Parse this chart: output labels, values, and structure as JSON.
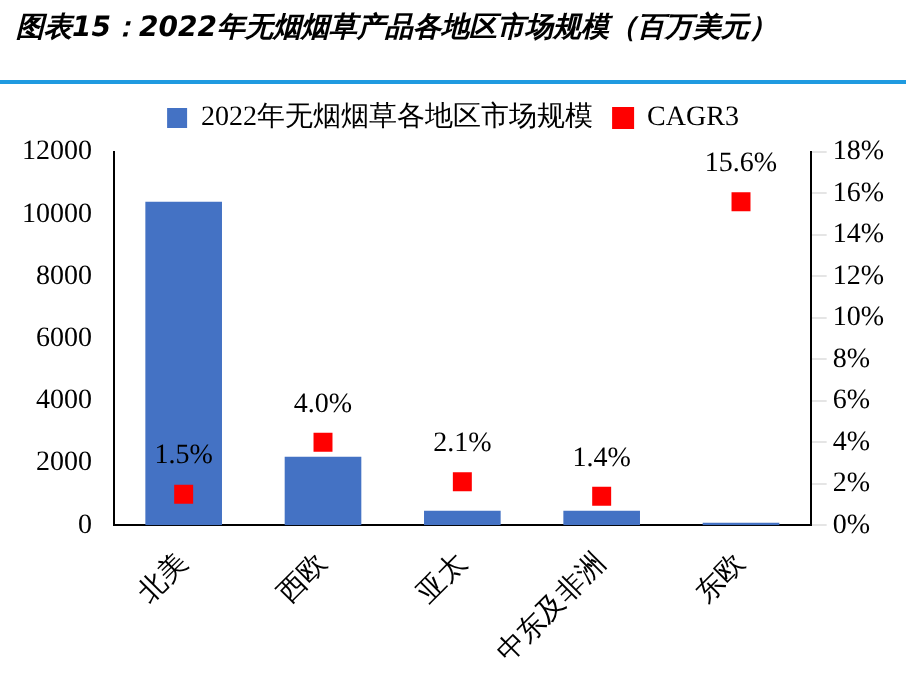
{
  "chart_data": {
    "type": "bar",
    "title": "图表15：2022年无烟烟草产品各地区市场规模（百万美元）",
    "categories": [
      "北美",
      "西欧",
      "亚太",
      "中东及非洲",
      "东欧"
    ],
    "series": [
      {
        "name": "2022年无烟烟草各地区市场规模",
        "color": "#4472c4",
        "values": [
          10400,
          2200,
          470,
          470,
          80
        ]
      },
      {
        "name": "CAGR3",
        "type": "scatter",
        "axis": "y2",
        "color": "#ff0000",
        "marker": "square",
        "values": [
          1.5,
          4.0,
          2.1,
          1.4,
          15.6
        ],
        "value_labels": [
          "1.5%",
          "4.0%",
          "2.1%",
          "1.4%",
          "15.6%"
        ]
      }
    ],
    "ylim": [
      0,
      12000
    ],
    "yticks": [
      0,
      2000,
      4000,
      6000,
      8000,
      10000,
      12000
    ],
    "y2lim": [
      0,
      18
    ],
    "y2ticks": [
      {
        "value": 0,
        "label": "0%"
      },
      {
        "value": 2,
        "label": "2%"
      },
      {
        "value": 4,
        "label": "4%"
      },
      {
        "value": 6,
        "label": "6%"
      },
      {
        "value": 8,
        "label": "8%"
      },
      {
        "value": 10,
        "label": "10%"
      },
      {
        "value": 12,
        "label": "12%"
      },
      {
        "value": 14,
        "label": "14%"
      },
      {
        "value": 16,
        "label": "16%"
      },
      {
        "value": 18,
        "label": "18%"
      }
    ],
    "grid": false,
    "legend": "top"
  }
}
